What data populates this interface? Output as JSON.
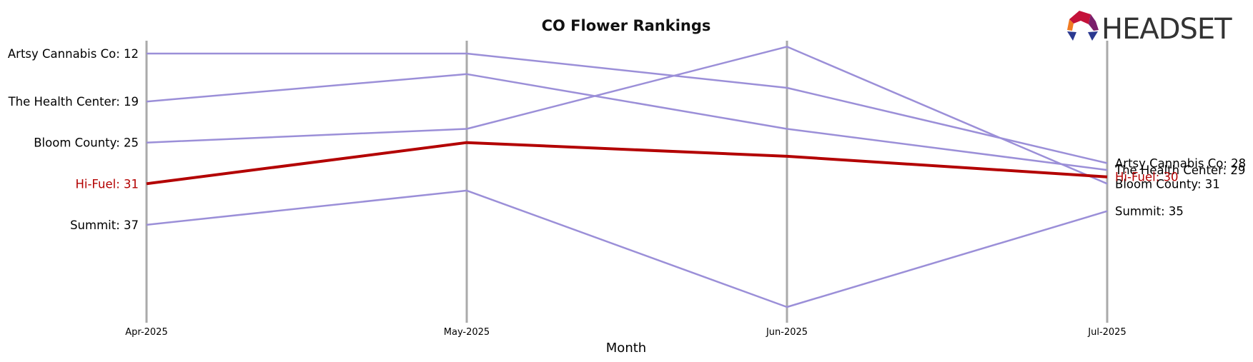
{
  "brand": {
    "logo_text": "HEADSET"
  },
  "chart_data": {
    "type": "line",
    "title": "CO Flower Rankings",
    "xlabel": "Month",
    "ylabel": "",
    "categories": [
      "Apr-2025",
      "May-2025",
      "Jun-2025",
      "Jul-2025"
    ],
    "y_inverted": true,
    "ylim": [
      10.5,
      50.5
    ],
    "grid": false,
    "highlight_series": "Hi-Fuel",
    "colors": {
      "default": "#9b8fd8",
      "highlight": "#b30000",
      "axis": "#aaaaaa",
      "highlight_text": "#b30000",
      "text": "#000000"
    },
    "series": [
      {
        "name": "Artsy Cannabis Co",
        "values": [
          12,
          12,
          17,
          28
        ],
        "start_label": "Artsy Cannabis Co: 12",
        "end_label": "Artsy Cannabis Co: 28"
      },
      {
        "name": "The Health Center",
        "values": [
          19,
          15,
          23,
          29
        ],
        "start_label": "The Health Center: 19",
        "end_label": "The Health Center: 29"
      },
      {
        "name": "Bloom County",
        "values": [
          25,
          23,
          11,
          31
        ],
        "start_label": "Bloom County: 25",
        "end_label": "Bloom County: 31"
      },
      {
        "name": "Hi-Fuel",
        "values": [
          31,
          25,
          27,
          30
        ],
        "start_label": "Hi-Fuel: 31",
        "end_label": "Hi-Fuel: 30"
      },
      {
        "name": "Summit",
        "values": [
          37,
          32,
          49,
          35
        ],
        "start_label": "Summit: 37",
        "end_label": "Summit: 35"
      }
    ]
  }
}
